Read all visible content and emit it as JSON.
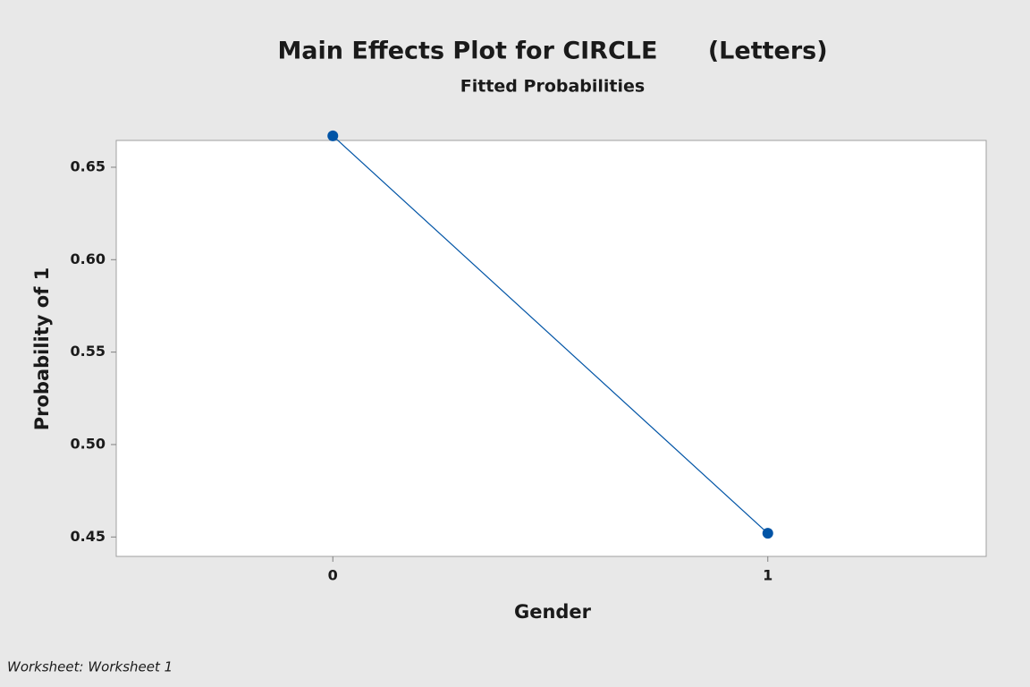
{
  "chart_data": {
    "type": "line",
    "title": "Main Effects Plot for CIRCLE      (Letters)",
    "subtitle": "Fitted Probabilities",
    "x_label": "Gender",
    "y_label": "Probability of 1",
    "footnote": "Worksheet: Worksheet 1",
    "categories": [
      "0",
      "1"
    ],
    "values": [
      0.667,
      0.452
    ],
    "color": "#0054a6",
    "ylim": [
      0.4395,
      0.6645
    ],
    "yticks": [
      0.45,
      {
        "value": 0.5,
        "label": "0.50"
      },
      0.55,
      {
        "value": 0.6,
        "label": "0.60"
      },
      0.65
    ]
  }
}
